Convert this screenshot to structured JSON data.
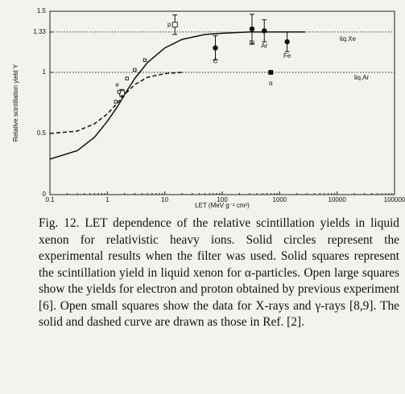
{
  "chart_data": {
    "type": "scatter",
    "xlabel": "LET (MeV g⁻¹ cm²)",
    "ylabel": "Relative scintillation yield Y",
    "xscale": "log",
    "xlim": [
      0.1,
      100000
    ],
    "xticks": [
      0.1,
      1,
      10,
      100,
      1000,
      10000,
      100000
    ],
    "ylim": [
      0,
      1.5
    ],
    "yticks": [
      0,
      0.5,
      1,
      1.33,
      1.5
    ],
    "reference_lines": [
      {
        "label": "liq.Xe",
        "value": 1.33
      },
      {
        "label": "liq.Ar",
        "value": 1
      }
    ],
    "curves": [
      {
        "style": "solid",
        "x": [
          0.1,
          0.3,
          0.6,
          1,
          1.5,
          2,
          3,
          5,
          10,
          20,
          50,
          100,
          300,
          1000,
          2800
        ],
        "values": [
          0.29,
          0.36,
          0.47,
          0.6,
          0.72,
          0.82,
          0.95,
          1.08,
          1.2,
          1.27,
          1.31,
          1.32,
          1.33,
          1.33,
          1.33
        ]
      },
      {
        "style": "dashed",
        "x": [
          0.1,
          0.3,
          0.6,
          1,
          1.5,
          2,
          3,
          5,
          10,
          20
        ],
        "values": [
          0.5,
          0.52,
          0.58,
          0.66,
          0.75,
          0.82,
          0.9,
          0.96,
          0.99,
          1.0
        ]
      }
    ],
    "heavy_ions": {
      "marker": "solid-circle",
      "labels": [
        "C",
        "Si",
        "Ar",
        "Fe"
      ],
      "x": [
        76,
        330,
        540,
        1350
      ],
      "values": [
        1.2,
        1.355,
        1.34,
        1.25
      ],
      "errors": [
        0.1,
        0.12,
        0.09,
        0.08
      ]
    },
    "large_open_squares": {
      "marker": "open-square",
      "labels": [
        "e",
        "p"
      ],
      "x": [
        1.8,
        15
      ],
      "values": [
        0.83,
        1.39
      ],
      "errors": [
        0.03,
        0.08
      ]
    },
    "alpha": {
      "marker": "solid-square",
      "labels": [
        "α"
      ],
      "x": [
        700
      ],
      "values": [
        1.0
      ]
    },
    "xray_squares": {
      "marker": "small-open-square",
      "x": [
        1.4,
        1.6,
        2.2,
        3,
        4.5
      ],
      "values": [
        0.76,
        0.84,
        0.95,
        1.02,
        1.1
      ]
    }
  },
  "caption": "Fig. 12. LET dependence of the relative scintillation yields in liquid xenon for relativistic heavy ions. Solid circles represent the experimental results when the filter was used. Solid squares represent the scintillation yield in liquid xenon for α-particles. Open large squares show the yields for electron and proton obtained by previous experiment [6]. Open small squares show the data for X-rays and γ-rays [8,9]. The solid and dashed curve are drawn as those in Ref. [2]."
}
